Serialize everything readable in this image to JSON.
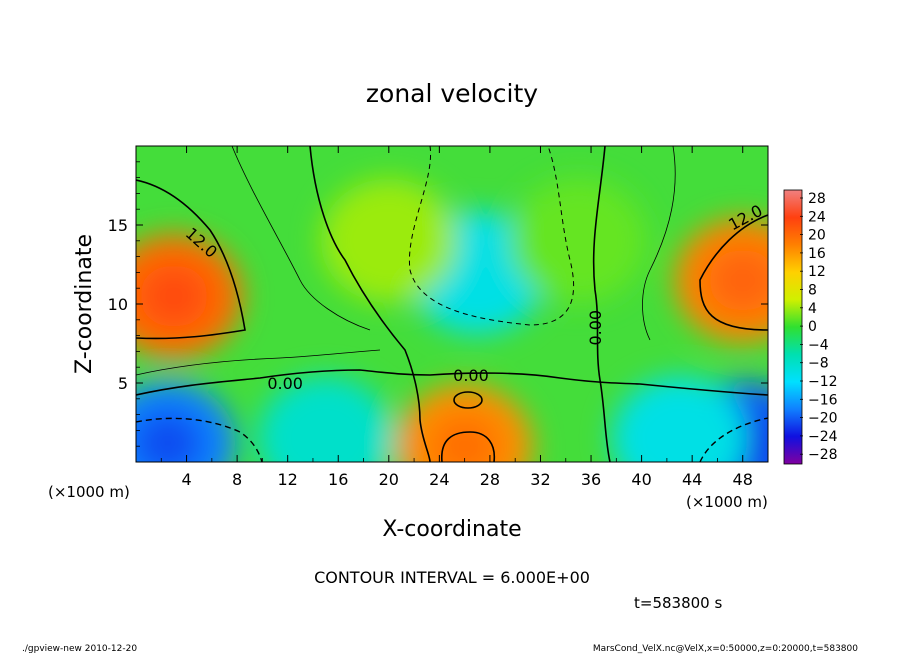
{
  "chart_data": {
    "type": "heatmap",
    "title": "zonal velocity",
    "xlabel": "X-coordinate",
    "ylabel": "Z-coordinate",
    "x_unit": "(×1000 m)",
    "y_unit": "(×1000 m)",
    "xlim": [
      0,
      50
    ],
    "ylim": [
      0,
      20
    ],
    "x_ticks": [
      "4",
      "8",
      "12",
      "16",
      "20",
      "24",
      "28",
      "32",
      "36",
      "40",
      "44",
      "48"
    ],
    "y_ticks": [
      "5",
      "10",
      "15"
    ],
    "colorbar_ticks": [
      "28",
      "24",
      "20",
      "16",
      "12",
      "8",
      "4",
      "0",
      "−4",
      "−8",
      "−12",
      "−16",
      "−20",
      "−24",
      "−28"
    ],
    "colorbar_range": [
      -30,
      30
    ],
    "contour_labels": [
      "12.0",
      "0.00",
      "0.00",
      "0.00",
      "12.0"
    ],
    "contour_interval": "CONTOUR INTERVAL = 6.000E+00",
    "time": "t=583800 s",
    "features": [
      {
        "x": 3,
        "z": 10.5,
        "value": 20
      },
      {
        "x": 48,
        "z": 11.5,
        "value": 18
      },
      {
        "x": 2.5,
        "z": 1.2,
        "value": -18
      },
      {
        "x": 48,
        "z": 1.2,
        "value": -20
      },
      {
        "x": 26,
        "z": 1.0,
        "value": 17
      },
      {
        "x": 27,
        "z": 12,
        "value": -10
      },
      {
        "x": 15,
        "z": 1.5,
        "value": -8
      },
      {
        "x": 43,
        "z": 1.5,
        "value": -10
      },
      {
        "x": 20,
        "z": 14,
        "value": 4
      },
      {
        "x": 35,
        "z": 14,
        "value": 2
      }
    ]
  },
  "footer": {
    "left": "./gpview-new  2010-12-20",
    "right": "MarsCond_VelX.nc@VelX,x=0:50000,z=0:20000,t=583800"
  }
}
